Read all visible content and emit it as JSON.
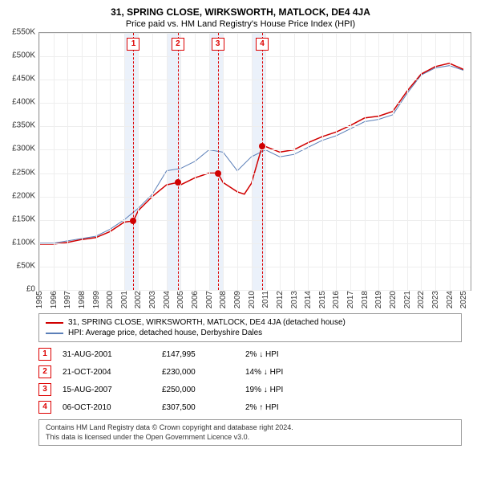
{
  "title": "31, SPRING CLOSE, WIRKSWORTH, MATLOCK, DE4 4JA",
  "subtitle": "Price paid vs. HM Land Registry's House Price Index (HPI)",
  "chart": {
    "type": "line",
    "background_color": "#ffffff",
    "grid_color": "#eeeeee",
    "border_color": "#999999",
    "x_years": [
      1995,
      1996,
      1997,
      1998,
      1999,
      2000,
      2001,
      2002,
      2003,
      2004,
      2005,
      2006,
      2007,
      2008,
      2009,
      2010,
      2011,
      2012,
      2013,
      2014,
      2015,
      2016,
      2017,
      2018,
      2019,
      2020,
      2021,
      2022,
      2023,
      2024,
      2025
    ],
    "xlim": [
      1995,
      2025.5
    ],
    "y_ticks": [
      0,
      50000,
      100000,
      150000,
      200000,
      250000,
      300000,
      350000,
      400000,
      450000,
      500000,
      550000
    ],
    "y_tick_labels": [
      "£0",
      "£50K",
      "£100K",
      "£150K",
      "£200K",
      "£250K",
      "£300K",
      "£350K",
      "£400K",
      "£450K",
      "£500K",
      "£550K"
    ],
    "ylim": [
      0,
      550000
    ],
    "shaded_x_ranges": [
      [
        2001,
        2002
      ],
      [
        2004,
        2005
      ],
      [
        2007,
        2008
      ],
      [
        2010,
        2011
      ]
    ],
    "shade_color": "rgba(120,160,220,0.15)",
    "series": [
      {
        "name": "hpi",
        "label": "HPI: Average price, detached house, Derbyshire Dales",
        "color": "#5b7fb8",
        "width": 1,
        "points": [
          [
            1995,
            100000
          ],
          [
            1996,
            100000
          ],
          [
            1997,
            105000
          ],
          [
            1998,
            110000
          ],
          [
            1999,
            115000
          ],
          [
            2000,
            130000
          ],
          [
            2001,
            150000
          ],
          [
            2002,
            175000
          ],
          [
            2003,
            205000
          ],
          [
            2004,
            255000
          ],
          [
            2005,
            260000
          ],
          [
            2006,
            275000
          ],
          [
            2007,
            300000
          ],
          [
            2008,
            295000
          ],
          [
            2009,
            255000
          ],
          [
            2010,
            285000
          ],
          [
            2011,
            300000
          ],
          [
            2012,
            285000
          ],
          [
            2013,
            290000
          ],
          [
            2014,
            305000
          ],
          [
            2015,
            320000
          ],
          [
            2016,
            330000
          ],
          [
            2017,
            345000
          ],
          [
            2018,
            360000
          ],
          [
            2019,
            365000
          ],
          [
            2020,
            375000
          ],
          [
            2021,
            420000
          ],
          [
            2022,
            460000
          ],
          [
            2023,
            475000
          ],
          [
            2024,
            480000
          ],
          [
            2025,
            470000
          ]
        ]
      },
      {
        "name": "price_paid",
        "label": "31, SPRING CLOSE, WIRKSWORTH, MATLOCK, DE4 4JA (detached house)",
        "color": "#d00000",
        "width": 1.5,
        "points": [
          [
            1995,
            98000
          ],
          [
            1996,
            98000
          ],
          [
            1997,
            102000
          ],
          [
            1998,
            108000
          ],
          [
            1999,
            112000
          ],
          [
            2000,
            125000
          ],
          [
            2001,
            145000
          ],
          [
            2001.66,
            147995
          ],
          [
            2002,
            170000
          ],
          [
            2003,
            200000
          ],
          [
            2004,
            225000
          ],
          [
            2004.8,
            230000
          ],
          [
            2005,
            225000
          ],
          [
            2006,
            240000
          ],
          [
            2007,
            250000
          ],
          [
            2007.62,
            250000
          ],
          [
            2008,
            230000
          ],
          [
            2009,
            210000
          ],
          [
            2009.5,
            205000
          ],
          [
            2010,
            228000
          ],
          [
            2010.76,
            307500
          ],
          [
            2011,
            307000
          ],
          [
            2012,
            295000
          ],
          [
            2013,
            300000
          ],
          [
            2014,
            315000
          ],
          [
            2015,
            328000
          ],
          [
            2016,
            338000
          ],
          [
            2017,
            352000
          ],
          [
            2018,
            368000
          ],
          [
            2019,
            372000
          ],
          [
            2020,
            382000
          ],
          [
            2021,
            425000
          ],
          [
            2022,
            462000
          ],
          [
            2023,
            478000
          ],
          [
            2024,
            485000
          ],
          [
            2025,
            472000
          ]
        ]
      }
    ],
    "event_markers": [
      {
        "n": "1",
        "x": 2001.66,
        "y": 147995
      },
      {
        "n": "2",
        "x": 2004.8,
        "y": 230000
      },
      {
        "n": "3",
        "x": 2007.62,
        "y": 250000
      },
      {
        "n": "4",
        "x": 2010.76,
        "y": 307500
      }
    ],
    "event_line_color": "#d00000",
    "dot_color": "#d00000"
  },
  "legend": {
    "items": [
      {
        "color": "#d00000",
        "label": "31, SPRING CLOSE, WIRKSWORTH, MATLOCK, DE4 4JA (detached house)"
      },
      {
        "color": "#5b7fb8",
        "label": "HPI: Average price, detached house, Derbyshire Dales"
      }
    ]
  },
  "events_table": [
    {
      "n": "1",
      "date": "31-AUG-2001",
      "price": "£147,995",
      "delta": "2% ↓ HPI"
    },
    {
      "n": "2",
      "date": "21-OCT-2004",
      "price": "£230,000",
      "delta": "14% ↓ HPI"
    },
    {
      "n": "3",
      "date": "15-AUG-2007",
      "price": "£250,000",
      "delta": "19% ↓ HPI"
    },
    {
      "n": "4",
      "date": "06-OCT-2010",
      "price": "£307,500",
      "delta": "2% ↑ HPI"
    }
  ],
  "footer": {
    "line1": "Contains HM Land Registry data © Crown copyright and database right 2024.",
    "line2": "This data is licensed under the Open Government Licence v3.0."
  }
}
